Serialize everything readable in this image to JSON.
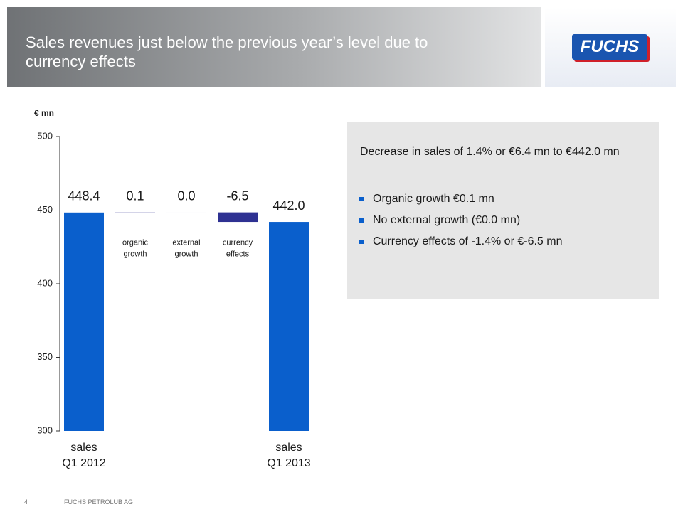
{
  "header": {
    "title": "Sales revenues just below the previous year’s level due to currency effects",
    "logo": "FUCHS"
  },
  "chart_data": {
    "type": "waterfall",
    "y_label": "€ mn",
    "categories": [
      [
        "sales",
        "Q1 2012"
      ],
      [
        "organic",
        "growth"
      ],
      [
        "external",
        "growth"
      ],
      [
        "currency",
        "effects"
      ],
      [
        "sales",
        "Q1 2013"
      ]
    ],
    "measure": [
      "absolute",
      "relative",
      "relative",
      "relative",
      "absolute"
    ],
    "values": [
      448.4,
      0.1,
      0.0,
      -6.5,
      442.0
    ],
    "value_labels": [
      "448.4",
      "0.1",
      "0.0",
      "-6.5",
      "442.0"
    ],
    "colors": {
      "absolute": "#0a5fcc",
      "relative": "#2e3192"
    },
    "ylim": [
      300,
      500
    ],
    "yticks": [
      300,
      350,
      400,
      450,
      500
    ]
  },
  "textbox": {
    "heading": "Decrease in sales of 1.4% or €6.4 mn to €442.0 mn",
    "bullets": [
      "Organic growth €0.1 mn",
      "No external growth (€0.0 mn)",
      "Currency effects of -1.4% or €-6.5 mn"
    ]
  },
  "footer": {
    "page": "4",
    "company": "FUCHS PETROLUB AG"
  }
}
